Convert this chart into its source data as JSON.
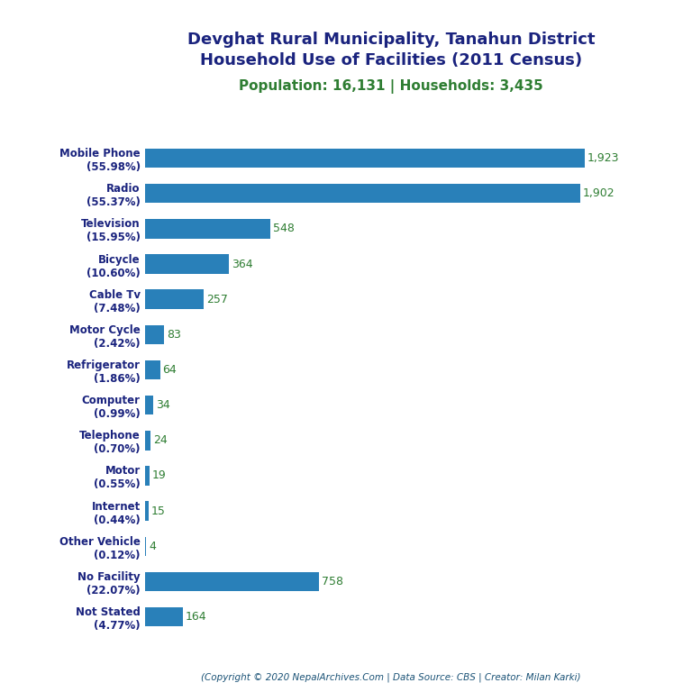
{
  "title_line1": "Devghat Rural Municipality, Tanahun District",
  "title_line2": "Household Use of Facilities (2011 Census)",
  "subtitle": "Population: 16,131 | Households: 3,435",
  "copyright": "(Copyright © 2020 NepalArchives.Com | Data Source: CBS | Creator: Milan Karki)",
  "categories": [
    "Mobile Phone\n(55.98%)",
    "Radio\n(55.37%)",
    "Television\n(15.95%)",
    "Bicycle\n(10.60%)",
    "Cable Tv\n(7.48%)",
    "Motor Cycle\n(2.42%)",
    "Refrigerator\n(1.86%)",
    "Computer\n(0.99%)",
    "Telephone\n(0.70%)",
    "Motor\n(0.55%)",
    "Internet\n(0.44%)",
    "Other Vehicle\n(0.12%)",
    "No Facility\n(22.07%)",
    "Not Stated\n(4.77%)"
  ],
  "values": [
    1923,
    1902,
    548,
    364,
    257,
    83,
    64,
    34,
    24,
    19,
    15,
    4,
    758,
    164
  ],
  "bar_color": "#2980b9",
  "title_color": "#1a237e",
  "subtitle_color": "#2e7d32",
  "value_color": "#2e7d32",
  "copyright_color": "#1a5276",
  "background_color": "#ffffff",
  "label_color": "#1a237e",
  "xlim": 2150,
  "bar_height": 0.55,
  "label_fontsize": 8.5,
  "value_fontsize": 9,
  "title_fontsize": 13,
  "subtitle_fontsize": 11,
  "copyright_fontsize": 7.5
}
